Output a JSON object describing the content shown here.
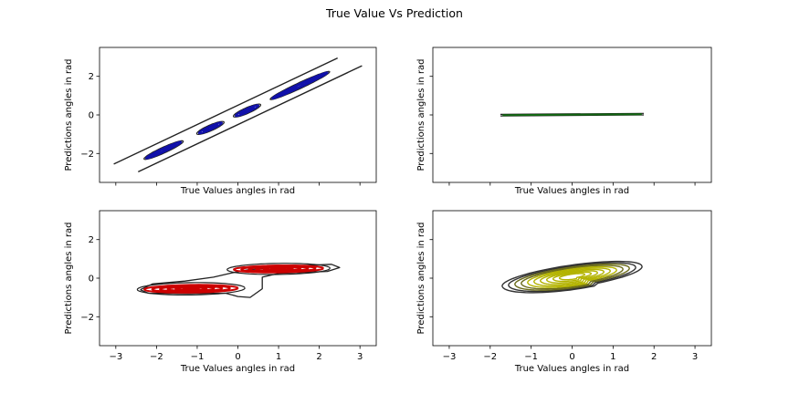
{
  "figure": {
    "title": "True Value Vs Prediction"
  },
  "chart_data": [
    {
      "type": "contour",
      "panel": "top-left",
      "xlabel": "True Values angles in rad",
      "ylabel": "Predictions angles in rad",
      "xlim": [
        -3.4,
        3.4
      ],
      "ylim": [
        -3.5,
        3.5
      ],
      "xticks": [
        -3,
        -2,
        -1,
        0,
        1,
        2,
        3
      ],
      "yticks": [
        -2,
        0,
        2
      ],
      "show_xtick_labels": false,
      "show_ytick_labels": true,
      "color": "#1111aa",
      "outer_color": "#222222",
      "outer_band": {
        "x0": -3.05,
        "x1": 3.05,
        "half_width": 0.5
      },
      "clusters": [
        {
          "x0": -2.3,
          "x1": -1.35
        },
        {
          "x0": -1.0,
          "x1": -0.35
        },
        {
          "x0": -0.1,
          "x1": 0.55
        },
        {
          "x0": 0.8,
          "x1": 2.25
        }
      ]
    },
    {
      "type": "contour",
      "panel": "top-right",
      "xlabel": "True Values angles in rad",
      "ylabel": "Predictions angles in rad",
      "xlim": [
        -3.4,
        3.4
      ],
      "ylim": [
        -3.5,
        3.5
      ],
      "xticks": [
        -3,
        -2,
        -1,
        0,
        1,
        2,
        3
      ],
      "yticks": [
        -2,
        0,
        2
      ],
      "show_xtick_labels": false,
      "show_ytick_labels": false,
      "color": "#116611",
      "ridge": {
        "x0": -1.75,
        "x1": 1.75,
        "y0": -0.01,
        "y1": 0.04
      }
    },
    {
      "type": "contour",
      "panel": "bottom-left",
      "xlabel": "True Values angles in rad",
      "ylabel": "Predictions angles in rad",
      "xlim": [
        -3.4,
        3.4
      ],
      "ylim": [
        -3.5,
        3.5
      ],
      "xticks": [
        -3,
        -2,
        -1,
        0,
        1,
        2,
        3
      ],
      "yticks": [
        -2,
        0,
        2
      ],
      "show_xtick_labels": true,
      "show_ytick_labels": true,
      "color": "#cc0000",
      "outer_color": "#222222",
      "lobes": [
        {
          "cx": -1.15,
          "cy": -0.55,
          "rx": 1.15,
          "ry": 0.2,
          "levels": 6
        },
        {
          "cx": 1.0,
          "cy": 0.48,
          "rx": 1.1,
          "ry": 0.18,
          "levels": 6
        }
      ]
    },
    {
      "type": "contour",
      "panel": "bottom-right",
      "xlabel": "True Values angles in rad",
      "ylabel": "Predictions angles in rad",
      "xlim": [
        -3.4,
        3.4
      ],
      "ylim": [
        -3.5,
        3.5
      ],
      "xticks": [
        -3,
        -2,
        -1,
        0,
        1,
        2,
        3
      ],
      "yticks": [
        -2,
        0,
        2
      ],
      "show_xtick_labels": true,
      "show_ytick_labels": false,
      "color": "#b3b300",
      "outer_color": "#333333",
      "blob": {
        "cx": 0.0,
        "cy": 0.1,
        "spread_x": 1.85,
        "spread_y": 1.0,
        "tilt": 0.4,
        "levels": 10
      }
    }
  ]
}
